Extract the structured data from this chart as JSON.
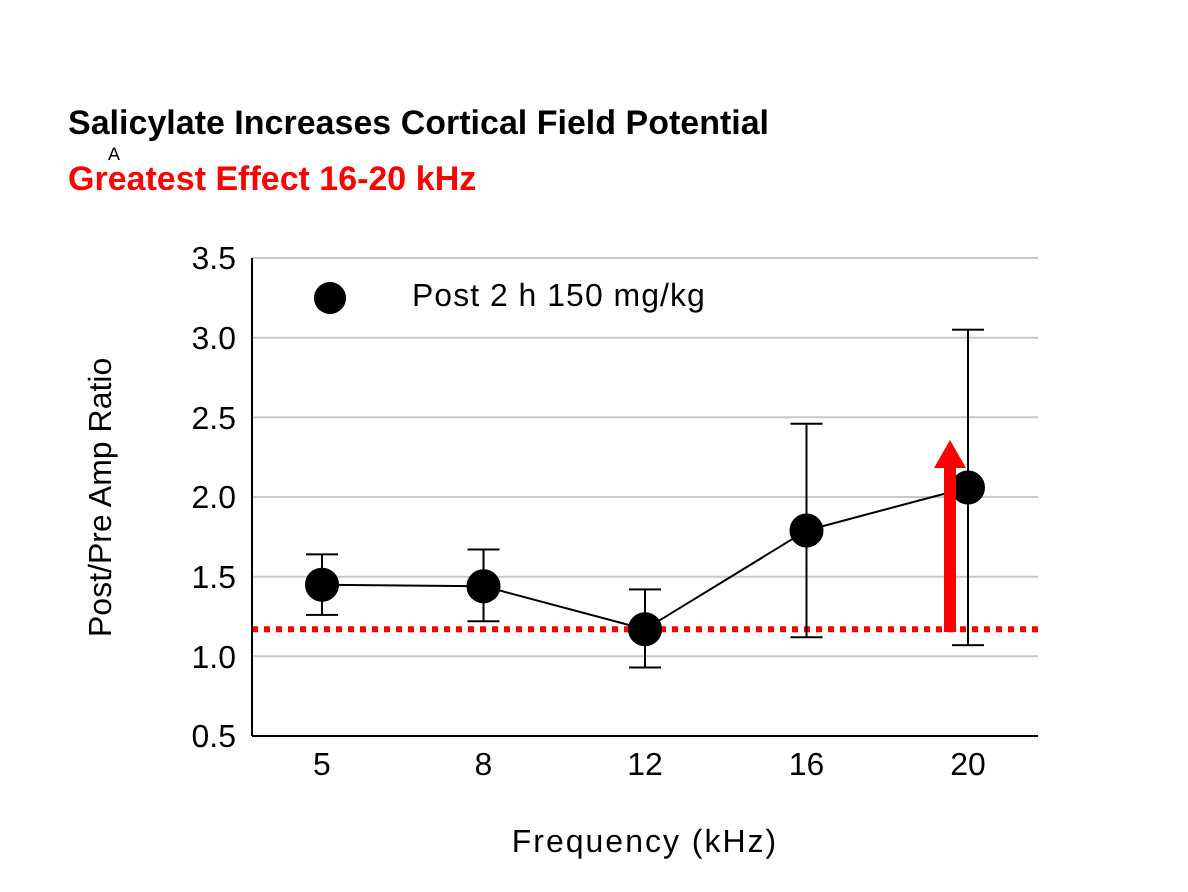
{
  "chart_data": {
    "type": "line",
    "title": "Salicylate Increases Cortical Field Potential",
    "subtitle": "Greatest Effect 16-20 kHz",
    "annotations": [
      "A"
    ],
    "xlabel": "Frequency (kHz)",
    "ylabel": "Post/Pre Amp Ratio",
    "categories": [
      "5",
      "8",
      "12",
      "16",
      "20"
    ],
    "series": [
      {
        "name": "Post 2 h  150 mg/kg",
        "color": "#000000",
        "values": [
          1.45,
          1.44,
          1.17,
          1.79,
          2.06
        ],
        "errors": [
          [
            1.26,
            1.64
          ],
          [
            1.22,
            1.67
          ],
          [
            0.93,
            1.42
          ],
          [
            1.12,
            2.46
          ],
          [
            1.07,
            3.05
          ]
        ]
      }
    ],
    "ylim": [
      0.5,
      3.5
    ],
    "yticks": [
      {
        "value": 0.5,
        "label": "0.5"
      },
      {
        "value": 1,
        "label": "1.0"
      },
      {
        "value": 1.5,
        "label": "1.5"
      },
      {
        "value": 2,
        "label": "2.0"
      },
      {
        "value": 2.5,
        "label": "2.5"
      },
      {
        "value": 3,
        "label": "3.0"
      },
      {
        "value": 3.5,
        "label": "3.5"
      }
    ],
    "ref_lines": [
      {
        "axis": "y",
        "value": 1.17,
        "color": "#ff0000",
        "line_style": "dotted"
      }
    ],
    "grid": "y",
    "legend": "top left",
    "marker": "circle",
    "line_style": "solid"
  }
}
